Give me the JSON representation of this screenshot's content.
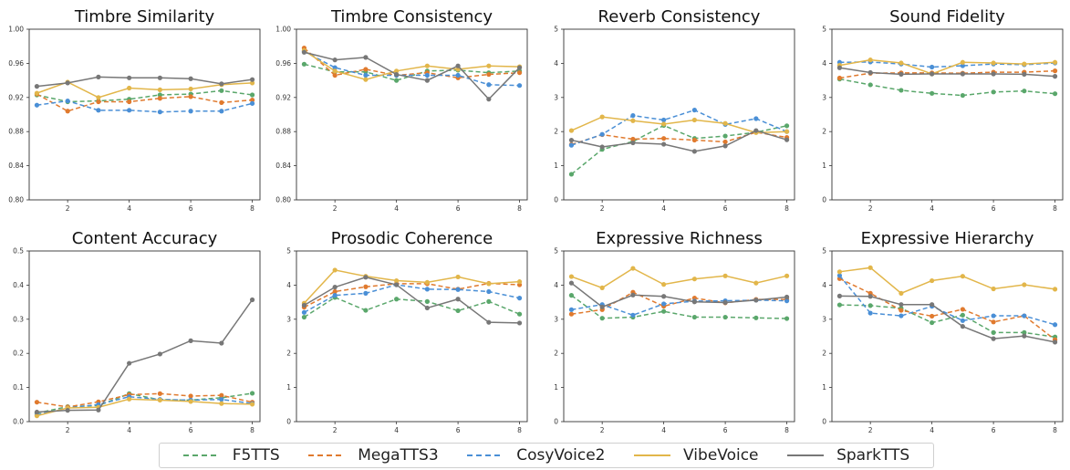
{
  "series_styles": [
    {
      "name": "F5TTS",
      "color": "#5aa76b",
      "style": "dashed",
      "marker": true
    },
    {
      "name": "MegaTTS3",
      "color": "#e07a2e",
      "style": "dashed",
      "marker": true
    },
    {
      "name": "CosyVoice2",
      "color": "#4a8fd6",
      "style": "dashed",
      "marker": true
    },
    {
      "name": "VibeVoice",
      "color": "#e2b64a",
      "style": "solid",
      "marker": true
    },
    {
      "name": "SparkTTS",
      "color": "#777777",
      "style": "solid",
      "marker": true
    }
  ],
  "legend": {
    "items": [
      "F5TTS",
      "MegaTTS3",
      "CosyVoice2",
      "VibeVoice",
      "SparkTTS"
    ]
  },
  "chart_data": [
    {
      "type": "line",
      "title": "Timbre Similarity",
      "x": [
        1,
        2,
        3,
        4,
        5,
        6,
        7,
        8
      ],
      "xticks": [
        2,
        4,
        6,
        8
      ],
      "ylim": [
        0.8,
        1.0
      ],
      "yticks": [
        "0.80",
        "0.84",
        "0.88",
        "0.92",
        "0.96",
        "1.00"
      ],
      "series": [
        {
          "name": "F5TTS",
          "values": [
            0.923,
            0.915,
            0.916,
            0.918,
            0.923,
            0.924,
            0.928,
            0.923
          ]
        },
        {
          "name": "MegaTTS3",
          "values": [
            0.924,
            0.904,
            0.915,
            0.915,
            0.919,
            0.921,
            0.914,
            0.917
          ]
        },
        {
          "name": "CosyVoice2",
          "values": [
            0.911,
            0.916,
            0.905,
            0.905,
            0.903,
            0.904,
            0.904,
            0.913
          ]
        },
        {
          "name": "VibeVoice",
          "values": [
            0.925,
            0.938,
            0.92,
            0.931,
            0.929,
            0.93,
            0.935,
            0.937
          ]
        },
        {
          "name": "SparkTTS",
          "values": [
            0.933,
            0.937,
            0.944,
            0.943,
            0.943,
            0.942,
            0.936,
            0.941
          ]
        }
      ]
    },
    {
      "type": "line",
      "title": "Timbre Consistency",
      "x": [
        1,
        2,
        3,
        4,
        5,
        6,
        7,
        8
      ],
      "xticks": [
        2,
        4,
        6,
        8
      ],
      "ylim": [
        0.8,
        1.0
      ],
      "yticks": [
        "0.80",
        "0.84",
        "0.88",
        "0.92",
        "0.96",
        "1.00"
      ],
      "series": [
        {
          "name": "F5TTS",
          "values": [
            0.959,
            0.95,
            0.95,
            0.94,
            0.951,
            0.952,
            0.949,
            0.951
          ]
        },
        {
          "name": "MegaTTS3",
          "values": [
            0.978,
            0.946,
            0.953,
            0.946,
            0.949,
            0.943,
            0.947,
            0.949
          ]
        },
        {
          "name": "CosyVoice2",
          "values": [
            0.974,
            0.955,
            0.946,
            0.946,
            0.946,
            0.946,
            0.935,
            0.934
          ]
        },
        {
          "name": "VibeVoice",
          "values": [
            0.975,
            0.951,
            0.941,
            0.951,
            0.957,
            0.953,
            0.957,
            0.956
          ]
        },
        {
          "name": "SparkTTS",
          "values": [
            0.973,
            0.964,
            0.967,
            0.947,
            0.94,
            0.957,
            0.918,
            0.955
          ]
        }
      ]
    },
    {
      "type": "line",
      "title": "Reverb Consistency",
      "x": [
        1,
        2,
        3,
        4,
        5,
        6,
        7,
        8
      ],
      "xticks": [
        2,
        4,
        6,
        8
      ],
      "ylim": [
        0,
        5
      ],
      "yticks": [
        "0",
        "1",
        "2",
        "3",
        "4",
        "5"
      ],
      "series": [
        {
          "name": "F5TTS",
          "values": [
            0.75,
            1.48,
            1.71,
            2.18,
            1.8,
            1.87,
            1.98,
            2.17
          ]
        },
        {
          "name": "MegaTTS3",
          "values": [
            1.62,
            1.91,
            1.78,
            1.8,
            1.75,
            1.7,
            1.98,
            1.83
          ]
        },
        {
          "name": "CosyVoice2",
          "values": [
            1.6,
            1.92,
            2.47,
            2.34,
            2.63,
            2.21,
            2.38,
            2.0
          ]
        },
        {
          "name": "VibeVoice",
          "values": [
            2.03,
            2.43,
            2.32,
            2.22,
            2.34,
            2.24,
            1.97,
            2.0
          ]
        },
        {
          "name": "SparkTTS",
          "values": [
            1.75,
            1.55,
            1.67,
            1.63,
            1.42,
            1.58,
            2.03,
            1.76
          ]
        }
      ]
    },
    {
      "type": "line",
      "title": "Sound Fidelity",
      "x": [
        1,
        2,
        3,
        4,
        5,
        6,
        7,
        8
      ],
      "xticks": [
        2,
        4,
        6,
        8
      ],
      "ylim": [
        0,
        5
      ],
      "yticks": [
        "0",
        "1",
        "2",
        "3",
        "4",
        "5"
      ],
      "series": [
        {
          "name": "F5TTS",
          "values": [
            3.54,
            3.37,
            3.21,
            3.12,
            3.06,
            3.16,
            3.19,
            3.11
          ]
        },
        {
          "name": "MegaTTS3",
          "values": [
            3.57,
            3.71,
            3.72,
            3.72,
            3.71,
            3.74,
            3.74,
            3.78
          ]
        },
        {
          "name": "CosyVoice2",
          "values": [
            4.03,
            4.04,
            3.98,
            3.89,
            3.93,
            3.98,
            3.96,
            4.01
          ]
        },
        {
          "name": "VibeVoice",
          "values": [
            3.94,
            4.1,
            4.01,
            3.69,
            4.03,
            4.01,
            3.98,
            4.03
          ]
        },
        {
          "name": "SparkTTS",
          "values": [
            3.87,
            3.73,
            3.68,
            3.69,
            3.69,
            3.69,
            3.68,
            3.62
          ]
        }
      ]
    },
    {
      "type": "line",
      "title": "Content Accuracy",
      "x": [
        1,
        2,
        3,
        4,
        5,
        6,
        7,
        8
      ],
      "xticks": [
        2,
        4,
        6,
        8
      ],
      "ylim": [
        0,
        0.5
      ],
      "yticks": [
        "0.0",
        "0.1",
        "0.2",
        "0.3",
        "0.4",
        "0.5"
      ],
      "series": [
        {
          "name": "F5TTS",
          "values": [
            0.025,
            0.044,
            0.047,
            0.082,
            0.064,
            0.063,
            0.07,
            0.083
          ]
        },
        {
          "name": "MegaTTS3",
          "values": [
            0.057,
            0.043,
            0.058,
            0.079,
            0.082,
            0.075,
            0.077,
            0.057
          ]
        },
        {
          "name": "CosyVoice2",
          "values": [
            0.02,
            0.04,
            0.05,
            0.073,
            0.065,
            0.063,
            0.065,
            0.053
          ]
        },
        {
          "name": "VibeVoice",
          "values": [
            0.017,
            0.04,
            0.042,
            0.066,
            0.063,
            0.059,
            0.053,
            0.051
          ]
        },
        {
          "name": "SparkTTS",
          "values": [
            0.028,
            0.033,
            0.034,
            0.171,
            0.198,
            0.237,
            0.23,
            0.357
          ]
        }
      ]
    },
    {
      "type": "line",
      "title": "Prosodic Coherence",
      "x": [
        1,
        2,
        3,
        4,
        5,
        6,
        7,
        8
      ],
      "xticks": [
        2,
        4,
        6,
        8
      ],
      "ylim": [
        0,
        5
      ],
      "yticks": [
        "0",
        "1",
        "2",
        "3",
        "4",
        "5"
      ],
      "series": [
        {
          "name": "F5TTS",
          "values": [
            3.06,
            3.64,
            3.26,
            3.59,
            3.52,
            3.25,
            3.52,
            3.15
          ]
        },
        {
          "name": "MegaTTS3",
          "values": [
            3.35,
            3.81,
            3.95,
            4.04,
            4.04,
            3.88,
            4.05,
            4.01
          ]
        },
        {
          "name": "CosyVoice2",
          "values": [
            3.2,
            3.7,
            3.76,
            4.01,
            3.88,
            3.87,
            3.81,
            3.62
          ]
        },
        {
          "name": "VibeVoice",
          "values": [
            3.47,
            4.44,
            4.26,
            4.13,
            4.08,
            4.24,
            4.04,
            4.1
          ]
        },
        {
          "name": "SparkTTS",
          "values": [
            3.41,
            3.94,
            4.23,
            4.01,
            3.33,
            3.59,
            2.91,
            2.89
          ]
        }
      ]
    },
    {
      "type": "line",
      "title": "Expressive Richness",
      "x": [
        1,
        2,
        3,
        4,
        5,
        6,
        7,
        8
      ],
      "xticks": [
        2,
        4,
        6,
        8
      ],
      "ylim": [
        0,
        5
      ],
      "yticks": [
        "0",
        "1",
        "2",
        "3",
        "4",
        "5"
      ],
      "series": [
        {
          "name": "F5TTS",
          "values": [
            3.7,
            3.03,
            3.06,
            3.23,
            3.06,
            3.06,
            3.04,
            3.02
          ]
        },
        {
          "name": "MegaTTS3",
          "values": [
            3.15,
            3.28,
            3.79,
            3.38,
            3.62,
            3.48,
            3.58,
            3.58
          ]
        },
        {
          "name": "CosyVoice2",
          "values": [
            3.28,
            3.43,
            3.12,
            3.45,
            3.53,
            3.54,
            3.56,
            3.54
          ]
        },
        {
          "name": "VibeVoice",
          "values": [
            4.25,
            3.92,
            4.49,
            4.02,
            4.18,
            4.27,
            4.06,
            4.27
          ]
        },
        {
          "name": "SparkTTS",
          "values": [
            4.06,
            3.36,
            3.71,
            3.67,
            3.51,
            3.49,
            3.56,
            3.65
          ]
        }
      ]
    },
    {
      "type": "line",
      "title": "Expressive Hierarchy",
      "x": [
        1,
        2,
        3,
        4,
        5,
        6,
        7,
        8
      ],
      "xticks": [
        2,
        4,
        6,
        8
      ],
      "ylim": [
        0,
        5
      ],
      "yticks": [
        "0",
        "1",
        "2",
        "3",
        "4",
        "5"
      ],
      "series": [
        {
          "name": "F5TTS",
          "values": [
            3.42,
            3.4,
            3.32,
            2.9,
            3.12,
            2.61,
            2.61,
            2.48
          ]
        },
        {
          "name": "MegaTTS3",
          "values": [
            4.19,
            3.76,
            3.26,
            3.09,
            3.29,
            2.92,
            3.1,
            2.4
          ]
        },
        {
          "name": "CosyVoice2",
          "values": [
            4.28,
            3.18,
            3.1,
            3.38,
            2.96,
            3.1,
            3.1,
            2.84
          ]
        },
        {
          "name": "VibeVoice",
          "values": [
            4.39,
            4.51,
            3.76,
            4.13,
            4.26,
            3.89,
            4.01,
            3.88
          ]
        },
        {
          "name": "SparkTTS",
          "values": [
            3.68,
            3.67,
            3.43,
            3.43,
            2.79,
            2.43,
            2.51,
            2.33
          ]
        }
      ]
    }
  ]
}
